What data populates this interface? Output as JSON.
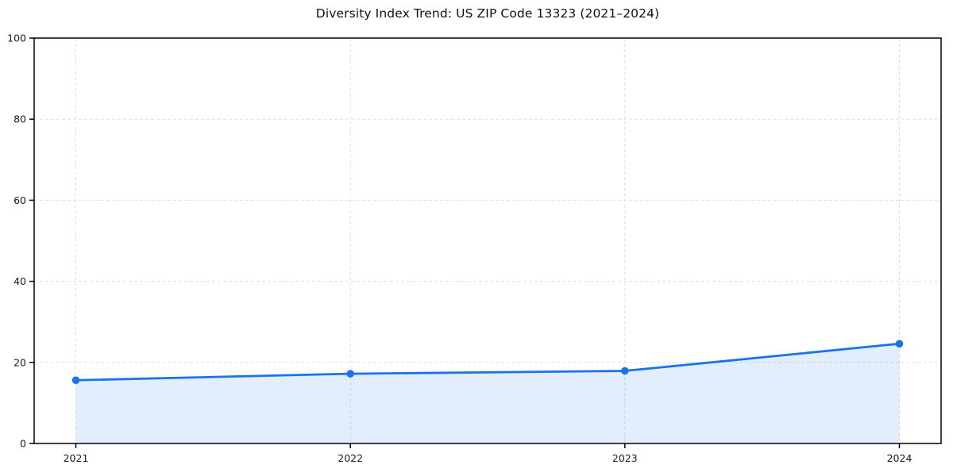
{
  "figure": {
    "background": "#ffffff"
  },
  "chart_data": {
    "type": "area",
    "title": "Diversity Index Trend: US ZIP Code 13323 (2021–2024)",
    "x": [
      "2021",
      "2022",
      "2023",
      "2024"
    ],
    "series": [
      {
        "name": "Diversity Index",
        "values": [
          15.6,
          17.2,
          17.9,
          24.6
        ],
        "line_color": "#1a73e8",
        "fill_color": "#1a73e8",
        "fill_opacity": 0.12,
        "marker": "circle"
      }
    ],
    "xlabel": "",
    "ylabel": "",
    "ylim": [
      0,
      100
    ],
    "yticks": [
      0,
      20,
      40,
      60,
      80,
      100
    ],
    "xtick_labels": [
      "2021",
      "2022",
      "2023",
      "2024"
    ],
    "grid": true,
    "grid_style": "dashed",
    "grid_color": "#e0e0e0",
    "axis_color": "#000000",
    "tick_label_color": "#1a1a1a",
    "legend_position": "none"
  }
}
